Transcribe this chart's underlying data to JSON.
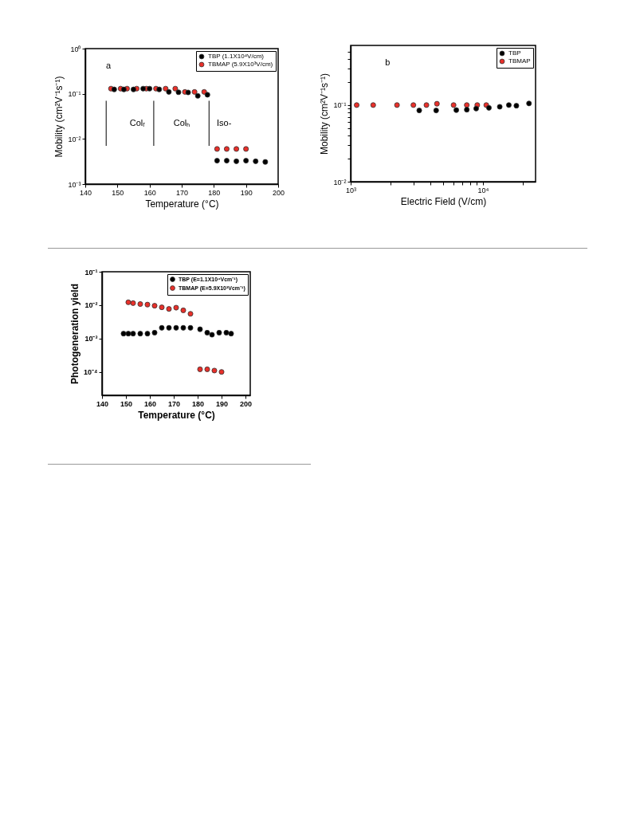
{
  "chart_data": [
    {
      "type": "scatter",
      "xlabel": "Temperature (°C)",
      "ylabel": "Mobility (cm²V⁻¹s⁻¹)",
      "log": "y",
      "marker": "circle",
      "legend": "top right",
      "xlim": [
        140,
        200
      ],
      "xticks": [
        140,
        150,
        160,
        170,
        180,
        190,
        200
      ],
      "ylim": [
        0.001,
        1
      ],
      "yticks": [
        {
          "value": 0.001,
          "label": "10⁻³"
        },
        {
          "value": 0.01,
          "label": "10⁻²"
        },
        {
          "value": 0.1,
          "label": "10⁻¹"
        },
        {
          "value": 1,
          "label": "10⁰"
        }
      ],
      "series": [
        {
          "name": "TBP (1.1X10⁴V/cm)",
          "color": "#000000",
          "x": [
            149,
            152,
            155,
            158,
            160,
            163,
            166,
            169,
            172,
            175,
            178,
            181,
            184,
            187,
            190,
            193,
            196
          ],
          "values": [
            0.125,
            0.125,
            0.125,
            0.13,
            0.13,
            0.125,
            0.11,
            0.108,
            0.107,
            0.09,
            0.095,
            0.0033,
            0.0033,
            0.0032,
            0.0033,
            0.0032,
            0.0031
          ]
        },
        {
          "name": "TBMAP (5.9X10³V/cm)",
          "color": "#e8302a",
          "x": [
            148,
            151,
            153,
            156,
            159,
            162,
            165,
            168,
            171,
            174,
            177,
            181,
            184,
            187,
            190
          ],
          "values": [
            0.13,
            0.13,
            0.13,
            0.13,
            0.13,
            0.13,
            0.13,
            0.13,
            0.11,
            0.11,
            0.11,
            0.006,
            0.006,
            0.006,
            0.006
          ]
        }
      ],
      "ref_lines": [
        {
          "axis": "x",
          "value": 146.5,
          "color": "#000000"
        },
        {
          "axis": "x",
          "value": 161.3,
          "color": "#000000"
        },
        {
          "axis": "x",
          "value": 178.5,
          "color": "#000000"
        }
      ],
      "annotations": [
        "a",
        "Colᵣ",
        "Colₕ",
        "Iso-"
      ]
    },
    {
      "type": "scatter",
      "xlabel": "Electric Field (V/cm)",
      "ylabel": "Mobility (cm²V⁻¹s⁻¹)",
      "log": "xy",
      "marker": "circle",
      "legend": "top right",
      "xlim": [
        1000,
        25000
      ],
      "xticks": [
        {
          "value": 1000,
          "label": "10³"
        },
        {
          "value": 2000,
          "label": null
        },
        {
          "value": 3000,
          "label": null
        },
        {
          "value": 4000,
          "label": null
        },
        {
          "value": 5000,
          "label": null
        },
        {
          "value": 6000,
          "label": null
        },
        {
          "value": 7000,
          "label": null
        },
        {
          "value": 8000,
          "label": null
        },
        {
          "value": 9000,
          "label": null
        },
        {
          "value": 10000,
          "label": "10⁴"
        },
        {
          "value": 20000,
          "label": null
        }
      ],
      "ylim": [
        0.01,
        0.6
      ],
      "yticks": [
        {
          "value": 0.01,
          "label": "10⁻²"
        },
        {
          "value": 0.02,
          "label": null
        },
        {
          "value": 0.03,
          "label": null
        },
        {
          "value": 0.04,
          "label": null
        },
        {
          "value": 0.05,
          "label": null
        },
        {
          "value": 0.06,
          "label": null
        },
        {
          "value": 0.07,
          "label": null
        },
        {
          "value": 0.08,
          "label": null
        },
        {
          "value": 0.09,
          "label": null
        },
        {
          "value": 0.1,
          "label": "10⁻¹"
        },
        {
          "value": 0.2,
          "label": null
        },
        {
          "value": 0.3,
          "label": null
        },
        {
          "value": 0.4,
          "label": null
        },
        {
          "value": 0.5,
          "label": null
        }
      ],
      "series": [
        {
          "name": "TBP",
          "color": "#000000",
          "x": [
            3300,
            4430,
            6290,
            7550,
            8890,
            11100,
            13400,
            15700,
            17900,
            22300
          ],
          "values": [
            0.085,
            0.085,
            0.086,
            0.087,
            0.09,
            0.092,
            0.095,
            0.1,
            0.098,
            0.105
          ]
        },
        {
          "name": "TBMAP",
          "color": "#e8302a",
          "x": [
            1110,
            1480,
            2240,
            2980,
            3740,
            4490,
            6000,
            7550,
            9060,
            10600
          ],
          "values": [
            0.1,
            0.1,
            0.1,
            0.1,
            0.1,
            0.104,
            0.1,
            0.1,
            0.1,
            0.1
          ]
        }
      ],
      "annotations": [
        "b"
      ]
    },
    {
      "type": "scatter",
      "xlabel": "Temperature (°C)",
      "ylabel": "Photogeneration yield",
      "log": "y",
      "marker": "circle",
      "legend": "top right",
      "xlim": [
        140,
        202
      ],
      "xticks": [
        140,
        150,
        160,
        170,
        180,
        190,
        200
      ],
      "ylim": [
        2e-05,
        0.1
      ],
      "yticks": [
        {
          "value": 0.0001,
          "label": "10⁻⁴"
        },
        {
          "value": 0.001,
          "label": "10⁻³"
        },
        {
          "value": 0.01,
          "label": "10⁻²"
        },
        {
          "value": 0.1,
          "label": "10⁻¹"
        }
      ],
      "series": [
        {
          "name": "TBP (E=1.1X10⁴Vcm⁻¹)",
          "color": "#000000",
          "x": [
            149,
            151,
            153,
            156,
            159,
            162,
            165,
            168,
            171,
            174,
            177,
            181,
            184,
            186,
            189,
            192,
            194
          ],
          "values": [
            0.0014,
            0.0014,
            0.0014,
            0.0014,
            0.0014,
            0.0015,
            0.0021,
            0.0021,
            0.0021,
            0.0021,
            0.0021,
            0.0019,
            0.0015,
            0.0013,
            0.0015,
            0.0015,
            0.0014
          ]
        },
        {
          "name": "TBMAP (E=5.9X10³Vcm⁻¹)",
          "color": "#e8302a",
          "x": [
            151,
            153,
            156,
            159,
            162,
            165,
            168,
            171,
            174,
            177,
            181,
            184,
            187,
            190
          ],
          "values": [
            0.0122,
            0.0115,
            0.0108,
            0.0104,
            0.0096,
            0.0086,
            0.0077,
            0.0084,
            0.007,
            0.0055,
            0.00012,
            0.00012,
            0.00011,
            0.0001
          ]
        }
      ]
    }
  ]
}
